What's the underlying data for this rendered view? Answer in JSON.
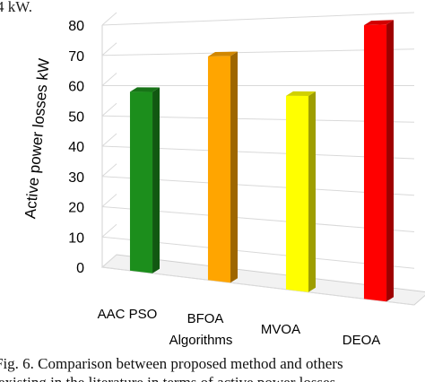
{
  "header_fragment": "4 kW.",
  "caption": {
    "line1": "Fig. 6. Comparison between proposed method and others",
    "line2": "existing in the literature in terms of active power losses"
  },
  "chart_data": {
    "type": "bar",
    "categories": [
      "AAC PSO",
      "BFOA",
      "MVOA",
      "DEOA"
    ],
    "values": [
      58,
      69,
      57,
      77
    ],
    "colors": [
      "#1c8e1c",
      "#ffa500",
      "#ffff00",
      "#ff0000"
    ],
    "title": "",
    "xlabel": "Algorithms",
    "ylabel": "Active power losses kW",
    "ylim": [
      0,
      80
    ],
    "yticks": [
      0,
      10,
      20,
      30,
      40,
      50,
      60,
      70,
      80
    ],
    "grid": true,
    "legend": "none",
    "style": "3d-perspective"
  }
}
